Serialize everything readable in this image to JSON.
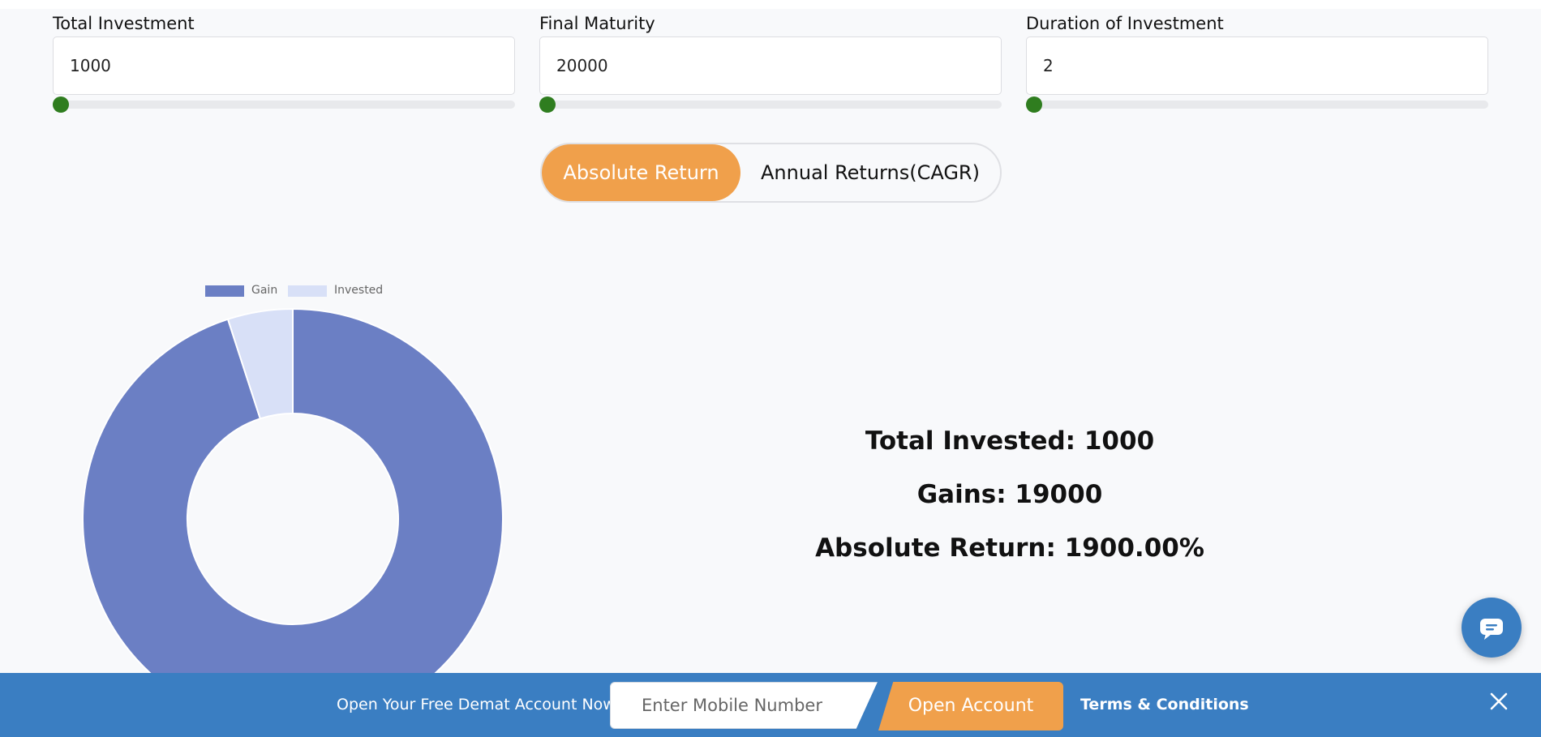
{
  "inputs": [
    {
      "label": "Total Investment",
      "value": "1000"
    },
    {
      "label": "Final Maturity",
      "value": "20000"
    },
    {
      "label": "Duration of Investment",
      "value": "2"
    }
  ],
  "toggle": {
    "active": "Absolute Return",
    "inactive": "Annual Returns(CAGR)"
  },
  "chart_data": {
    "type": "pie",
    "legend": [
      "Gain",
      "Invested"
    ],
    "legend_position": "top",
    "categories": [
      "Gain",
      "Invested"
    ],
    "values": [
      19000,
      1000
    ],
    "colors": [
      "#6b7fc4",
      "#d8e0f7"
    ]
  },
  "summary": {
    "invested": "Total Invested: 1000",
    "gains": "Gains: 19000",
    "absolute": "Absolute Return: 1900.00%"
  },
  "banner": {
    "text": "Open Your Free Demat Account Now",
    "mobile_placeholder": "Enter Mobile Number",
    "open_button": "Open Account",
    "terms": "Terms & Conditions"
  },
  "icons": {
    "chat": "chat-bubble-icon",
    "close": "close-icon"
  }
}
